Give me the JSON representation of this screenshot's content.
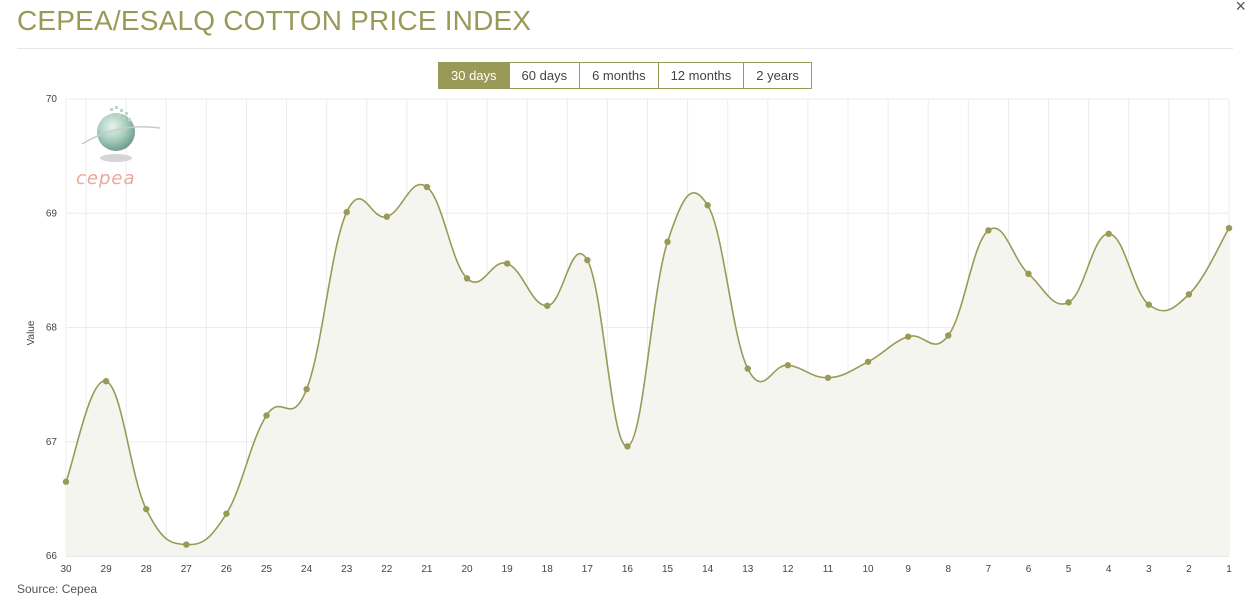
{
  "header": {
    "title": "CEPEA/ESALQ COTTON PRICE INDEX",
    "close_label": "×"
  },
  "range_tabs": [
    {
      "label": "30 days",
      "active": true
    },
    {
      "label": "60 days",
      "active": false
    },
    {
      "label": "6 months",
      "active": false
    },
    {
      "label": "12 months",
      "active": false
    },
    {
      "label": "2 years",
      "active": false
    }
  ],
  "logo": {
    "text": "cepea",
    "icon": "globe-logo-icon"
  },
  "footer": {
    "source": "Source: Cepea"
  },
  "colors": {
    "accent": "#999a57",
    "line": "#999a57",
    "fill": "#f5f5f0",
    "grid": "#ececec"
  },
  "chart_data": {
    "type": "area",
    "ylabel": "Value",
    "xlabel": "",
    "ylim": [
      66,
      70
    ],
    "yticks": [
      66,
      67,
      68,
      69,
      70
    ],
    "grid": true,
    "categories": [
      "30",
      "29",
      "28",
      "27",
      "26",
      "25",
      "24",
      "23",
      "22",
      "21",
      "20",
      "19",
      "18",
      "17",
      "16",
      "15",
      "14",
      "13",
      "12",
      "11",
      "10",
      "9",
      "8",
      "7",
      "6",
      "5",
      "4",
      "3",
      "2",
      "1"
    ],
    "series": [
      {
        "values": [
          66.65,
          67.53,
          66.41,
          66.1,
          66.37,
          67.23,
          67.46,
          69.01,
          68.97,
          69.23,
          68.43,
          68.56,
          68.19,
          68.59,
          66.96,
          68.75,
          69.07,
          67.64,
          67.67,
          67.56,
          67.7,
          67.92,
          67.93,
          68.85,
          68.47,
          68.22,
          68.82,
          68.2,
          68.29,
          68.87
        ]
      }
    ]
  }
}
